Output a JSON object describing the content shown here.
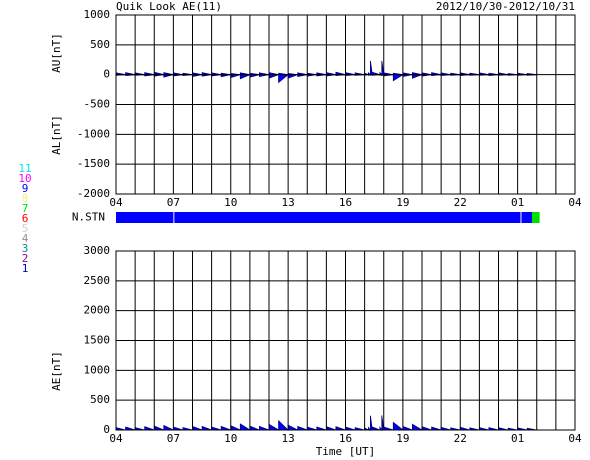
{
  "chart_data": [
    {
      "type": "area",
      "title": "Quik Look AE(11)",
      "subtitle": "2012/10/30-2012/10/31",
      "y_labels": [
        "AU[nT]",
        "AL[nT]"
      ],
      "x": [
        0,
        0.5,
        1,
        1.5,
        2,
        2.5,
        3,
        3.5,
        4,
        4.5,
        5,
        5.5,
        6,
        6.5,
        7,
        7.5,
        8,
        8.5,
        9,
        9.5,
        10,
        10.5,
        11,
        11.5,
        12,
        12.5,
        13,
        13.2,
        13.3,
        13.4,
        13.8,
        13.9,
        14,
        14.5,
        15,
        15.5,
        16,
        16.5,
        17,
        17.5,
        18,
        18.5,
        19,
        19.5,
        20,
        20.5,
        21,
        21.5,
        22
      ],
      "series": [
        {
          "name": "AU",
          "color": "#0000ff",
          "values": [
            30,
            35,
            30,
            35,
            40,
            35,
            30,
            25,
            30,
            35,
            30,
            25,
            20,
            30,
            25,
            30,
            35,
            25,
            20,
            30,
            25,
            30,
            35,
            40,
            35,
            30,
            25,
            30,
            230,
            40,
            35,
            230,
            30,
            25,
            30,
            35,
            30,
            35,
            30,
            25,
            30,
            25,
            30,
            25,
            30,
            20,
            25,
            20,
            15
          ]
        },
        {
          "name": "AL",
          "color": "#0000ff",
          "values": [
            -10,
            -15,
            -10,
            -20,
            -25,
            -40,
            -20,
            -15,
            -30,
            -25,
            -20,
            -35,
            -50,
            -70,
            -40,
            -30,
            -60,
            -130,
            -60,
            -30,
            -25,
            -20,
            -20,
            -15,
            -15,
            -10,
            -10,
            -10,
            -10,
            -10,
            -10,
            -15,
            -20,
            -100,
            -30,
            -60,
            -25,
            -15,
            -15,
            -10,
            -15,
            -10,
            -10,
            -15,
            -10,
            -10,
            -10,
            -10,
            -5
          ]
        }
      ],
      "xlim": [
        0,
        24
      ],
      "xticks": [
        {
          "value": 0,
          "label": "04"
        },
        {
          "value": 3,
          "label": "07"
        },
        {
          "value": 6,
          "label": "10"
        },
        {
          "value": 9,
          "label": "13"
        },
        {
          "value": 12,
          "label": "16"
        },
        {
          "value": 15,
          "label": "19"
        },
        {
          "value": 18,
          "label": "22"
        },
        {
          "value": 21,
          "label": "01"
        },
        {
          "value": 24,
          "label": "04"
        }
      ],
      "xgrid": [
        1,
        2,
        4,
        5,
        7,
        8,
        10,
        11,
        13,
        14,
        16,
        17,
        19,
        20,
        22,
        23
      ],
      "ylim": [
        -2000,
        1000
      ],
      "yticks": [
        -2000,
        -1500,
        -1000,
        -500,
        0,
        500,
        1000
      ],
      "grid": true
    },
    {
      "type": "station_bar",
      "label": "N.STN",
      "starts": [
        0,
        3.05,
        21.2,
        21.75
      ],
      "ends": [
        3,
        21.15,
        21.75,
        22.15
      ],
      "values": [
        9,
        9,
        9,
        7
      ],
      "xlim": [
        0,
        24
      ],
      "levels": [
        {
          "value": 11,
          "color": "#00e8e8"
        },
        {
          "value": 10,
          "color": "#ff00ff"
        },
        {
          "value": 9,
          "color": "#0000ff"
        },
        {
          "value": 8,
          "color": "#f0f080"
        },
        {
          "value": 7,
          "color": "#00e000"
        },
        {
          "value": 6,
          "color": "#ff0000"
        },
        {
          "value": 5,
          "color": "#d0d0d0"
        },
        {
          "value": 4,
          "color": "#909090"
        },
        {
          "value": 3,
          "color": "#009090"
        },
        {
          "value": 2,
          "color": "#a000a0"
        },
        {
          "value": 1,
          "color": "#0000c0"
        }
      ]
    },
    {
      "type": "area",
      "y_label": "AE[nT]",
      "x_label": "Time [UT]",
      "x": [
        0,
        0.5,
        1,
        1.5,
        2,
        2.5,
        3,
        3.5,
        4,
        4.5,
        5,
        5.5,
        6,
        6.5,
        7,
        7.5,
        8,
        8.5,
        9,
        9.5,
        10,
        10.5,
        11,
        11.5,
        12,
        12.5,
        13,
        13.2,
        13.3,
        13.4,
        13.8,
        13.9,
        14,
        14.5,
        15,
        15.5,
        16,
        16.5,
        17,
        17.5,
        18,
        18.5,
        19,
        19.5,
        20,
        20.5,
        21,
        21.5,
        22
      ],
      "series": [
        {
          "name": "AE",
          "color": "#0000ff",
          "values": [
            40,
            50,
            40,
            55,
            65,
            75,
            50,
            40,
            60,
            60,
            50,
            60,
            70,
            100,
            65,
            60,
            95,
            155,
            80,
            60,
            50,
            50,
            55,
            55,
            50,
            40,
            35,
            40,
            240,
            50,
            45,
            245,
            50,
            125,
            60,
            95,
            55,
            50,
            45,
            35,
            45,
            35,
            40,
            40,
            40,
            30,
            35,
            30,
            20
          ]
        }
      ],
      "xlim": [
        0,
        24
      ],
      "xticks": [
        {
          "value": 0,
          "label": "04"
        },
        {
          "value": 3,
          "label": "07"
        },
        {
          "value": 6,
          "label": "10"
        },
        {
          "value": 9,
          "label": "13"
        },
        {
          "value": 12,
          "label": "16"
        },
        {
          "value": 15,
          "label": "19"
        },
        {
          "value": 18,
          "label": "22"
        },
        {
          "value": 21,
          "label": "01"
        },
        {
          "value": 24,
          "label": "04"
        }
      ],
      "xgrid": [
        1,
        2,
        4,
        5,
        7,
        8,
        10,
        11,
        13,
        14,
        16,
        17,
        19,
        20,
        22,
        23
      ],
      "ylim": [
        0,
        3000
      ],
      "yticks": [
        0,
        500,
        1000,
        1500,
        2000,
        2500,
        3000
      ],
      "grid": true
    }
  ]
}
